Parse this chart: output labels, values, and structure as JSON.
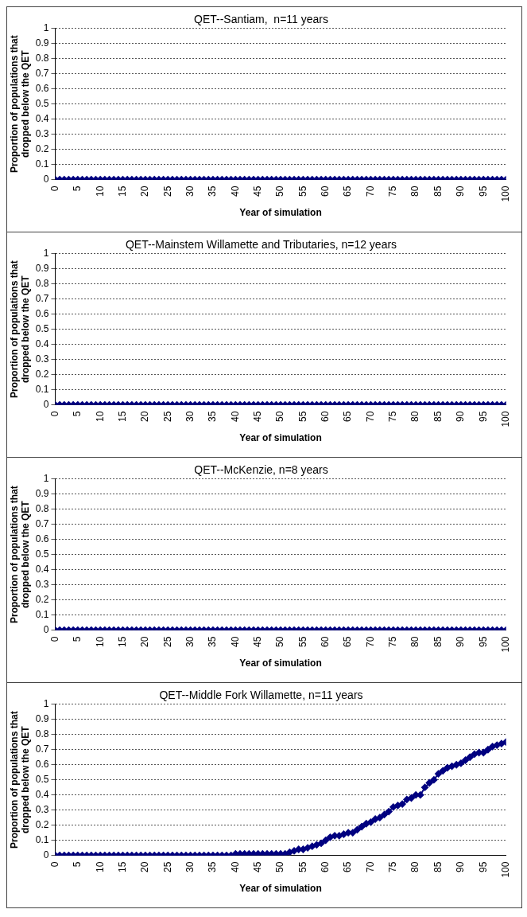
{
  "chart_data": [
    {
      "type": "line",
      "title": "QET--Santiam,  n=11 years",
      "xlabel": "Year of simulation",
      "ylabel": "Proportion of populations that dropped below the QET",
      "x": [
        0,
        1,
        2,
        3,
        4,
        5,
        6,
        7,
        8,
        9,
        10,
        11,
        12,
        13,
        14,
        15,
        16,
        17,
        18,
        19,
        20,
        21,
        22,
        23,
        24,
        25,
        26,
        27,
        28,
        29,
        30,
        31,
        32,
        33,
        34,
        35,
        36,
        37,
        38,
        39,
        40,
        41,
        42,
        43,
        44,
        45,
        46,
        47,
        48,
        49,
        50,
        51,
        52,
        53,
        54,
        55,
        56,
        57,
        58,
        59,
        60,
        61,
        62,
        63,
        64,
        65,
        66,
        67,
        68,
        69,
        70,
        71,
        72,
        73,
        74,
        75,
        76,
        77,
        78,
        79,
        80,
        81,
        82,
        83,
        84,
        85,
        86,
        87,
        88,
        89,
        90,
        91,
        92,
        93,
        94,
        95,
        96,
        97,
        98,
        99,
        100
      ],
      "series": [
        {
          "color": "#000080",
          "values": [
            0,
            0,
            0,
            0,
            0,
            0,
            0,
            0,
            0,
            0,
            0,
            0,
            0,
            0,
            0,
            0,
            0,
            0,
            0,
            0,
            0,
            0,
            0,
            0,
            0,
            0,
            0,
            0,
            0,
            0,
            0,
            0,
            0,
            0,
            0,
            0,
            0,
            0,
            0,
            0,
            0,
            0,
            0,
            0,
            0,
            0,
            0,
            0,
            0,
            0,
            0,
            0,
            0,
            0,
            0,
            0,
            0,
            0,
            0,
            0,
            0,
            0,
            0,
            0,
            0,
            0,
            0,
            0,
            0,
            0,
            0,
            0,
            0,
            0,
            0,
            0,
            0,
            0,
            0,
            0,
            0,
            0,
            0,
            0,
            0,
            0,
            0,
            0,
            0,
            0,
            0,
            0,
            0,
            0,
            0,
            0,
            0,
            0,
            0,
            0,
            0
          ]
        }
      ],
      "xlim": [
        0,
        100
      ],
      "xticks": [
        0,
        5,
        10,
        15,
        20,
        25,
        30,
        35,
        40,
        45,
        50,
        55,
        60,
        65,
        70,
        75,
        80,
        85,
        90,
        95,
        100
      ],
      "ylim": [
        0,
        1
      ],
      "yticks": [
        0,
        0.1,
        0.2,
        0.3,
        0.4,
        0.5,
        0.6,
        0.7,
        0.8,
        0.9,
        1
      ],
      "grid": "y",
      "marker": "diamond",
      "line_style": "solid",
      "legend": false
    },
    {
      "type": "line",
      "title": "QET--Mainstem Willamette and Tributaries, n=12 years",
      "xlabel": "Year of simulation",
      "ylabel": "Proportion of populations that dropped below the QET",
      "x": [
        0,
        1,
        2,
        3,
        4,
        5,
        6,
        7,
        8,
        9,
        10,
        11,
        12,
        13,
        14,
        15,
        16,
        17,
        18,
        19,
        20,
        21,
        22,
        23,
        24,
        25,
        26,
        27,
        28,
        29,
        30,
        31,
        32,
        33,
        34,
        35,
        36,
        37,
        38,
        39,
        40,
        41,
        42,
        43,
        44,
        45,
        46,
        47,
        48,
        49,
        50,
        51,
        52,
        53,
        54,
        55,
        56,
        57,
        58,
        59,
        60,
        61,
        62,
        63,
        64,
        65,
        66,
        67,
        68,
        69,
        70,
        71,
        72,
        73,
        74,
        75,
        76,
        77,
        78,
        79,
        80,
        81,
        82,
        83,
        84,
        85,
        86,
        87,
        88,
        89,
        90,
        91,
        92,
        93,
        94,
        95,
        96,
        97,
        98,
        99,
        100
      ],
      "series": [
        {
          "color": "#000080",
          "values": [
            0,
            0,
            0,
            0,
            0,
            0,
            0,
            0,
            0,
            0,
            0,
            0,
            0,
            0,
            0,
            0,
            0,
            0,
            0,
            0,
            0,
            0,
            0,
            0,
            0,
            0,
            0,
            0,
            0,
            0,
            0,
            0,
            0,
            0,
            0,
            0,
            0,
            0,
            0,
            0,
            0,
            0,
            0,
            0,
            0,
            0,
            0,
            0,
            0,
            0,
            0,
            0,
            0,
            0,
            0,
            0,
            0,
            0,
            0,
            0,
            0,
            0,
            0,
            0,
            0,
            0,
            0,
            0,
            0,
            0,
            0,
            0,
            0,
            0,
            0,
            0,
            0,
            0,
            0,
            0,
            0,
            0,
            0,
            0,
            0,
            0,
            0,
            0,
            0,
            0,
            0,
            0,
            0,
            0,
            0,
            0,
            0,
            0,
            0,
            0,
            0
          ]
        }
      ],
      "xlim": [
        0,
        100
      ],
      "xticks": [
        0,
        5,
        10,
        15,
        20,
        25,
        30,
        35,
        40,
        45,
        50,
        55,
        60,
        65,
        70,
        75,
        80,
        85,
        90,
        95,
        100
      ],
      "ylim": [
        0,
        1
      ],
      "yticks": [
        0,
        0.1,
        0.2,
        0.3,
        0.4,
        0.5,
        0.6,
        0.7,
        0.8,
        0.9,
        1
      ],
      "grid": "y",
      "marker": "diamond",
      "line_style": "solid",
      "legend": false
    },
    {
      "type": "line",
      "title": "QET--McKenzie, n=8 years",
      "xlabel": "Year of simulation",
      "ylabel": "Proportion of populations that dropped below the QET",
      "x": [
        0,
        1,
        2,
        3,
        4,
        5,
        6,
        7,
        8,
        9,
        10,
        11,
        12,
        13,
        14,
        15,
        16,
        17,
        18,
        19,
        20,
        21,
        22,
        23,
        24,
        25,
        26,
        27,
        28,
        29,
        30,
        31,
        32,
        33,
        34,
        35,
        36,
        37,
        38,
        39,
        40,
        41,
        42,
        43,
        44,
        45,
        46,
        47,
        48,
        49,
        50,
        51,
        52,
        53,
        54,
        55,
        56,
        57,
        58,
        59,
        60,
        61,
        62,
        63,
        64,
        65,
        66,
        67,
        68,
        69,
        70,
        71,
        72,
        73,
        74,
        75,
        76,
        77,
        78,
        79,
        80,
        81,
        82,
        83,
        84,
        85,
        86,
        87,
        88,
        89,
        90,
        91,
        92,
        93,
        94,
        95,
        96,
        97,
        98,
        99,
        100
      ],
      "series": [
        {
          "color": "#000080",
          "values": [
            0,
            0,
            0,
            0,
            0,
            0,
            0,
            0,
            0,
            0,
            0,
            0,
            0,
            0,
            0,
            0,
            0,
            0,
            0,
            0,
            0,
            0,
            0,
            0,
            0,
            0,
            0,
            0,
            0,
            0,
            0,
            0,
            0,
            0,
            0,
            0,
            0,
            0,
            0,
            0,
            0,
            0,
            0,
            0,
            0,
            0,
            0,
            0,
            0,
            0,
            0,
            0,
            0,
            0,
            0,
            0,
            0,
            0,
            0,
            0,
            0,
            0,
            0,
            0,
            0,
            0,
            0,
            0,
            0,
            0,
            0,
            0,
            0,
            0,
            0,
            0,
            0,
            0,
            0,
            0,
            0,
            0,
            0,
            0,
            0,
            0,
            0,
            0,
            0,
            0,
            0,
            0,
            0,
            0,
            0,
            0,
            0,
            0,
            0,
            0,
            0
          ]
        }
      ],
      "xlim": [
        0,
        100
      ],
      "xticks": [
        0,
        5,
        10,
        15,
        20,
        25,
        30,
        35,
        40,
        45,
        50,
        55,
        60,
        65,
        70,
        75,
        80,
        85,
        90,
        95,
        100
      ],
      "ylim": [
        0,
        1
      ],
      "yticks": [
        0,
        0.1,
        0.2,
        0.3,
        0.4,
        0.5,
        0.6,
        0.7,
        0.8,
        0.9,
        1
      ],
      "grid": "y",
      "marker": "diamond",
      "line_style": "solid",
      "legend": false
    },
    {
      "type": "line",
      "title": "QET--Middle Fork Willamette, n=11 years",
      "xlabel": "Year of simulation",
      "ylabel": "Proportion of populations that dropped below the QET",
      "x": [
        0,
        1,
        2,
        3,
        4,
        5,
        6,
        7,
        8,
        9,
        10,
        11,
        12,
        13,
        14,
        15,
        16,
        17,
        18,
        19,
        20,
        21,
        22,
        23,
        24,
        25,
        26,
        27,
        28,
        29,
        30,
        31,
        32,
        33,
        34,
        35,
        36,
        37,
        38,
        39,
        40,
        41,
        42,
        43,
        44,
        45,
        46,
        47,
        48,
        49,
        50,
        51,
        52,
        53,
        54,
        55,
        56,
        57,
        58,
        59,
        60,
        61,
        62,
        63,
        64,
        65,
        66,
        67,
        68,
        69,
        70,
        71,
        72,
        73,
        74,
        75,
        76,
        77,
        78,
        79,
        80,
        81,
        82,
        83,
        84,
        85,
        86,
        87,
        88,
        89,
        90,
        91,
        92,
        93,
        94,
        95,
        96,
        97,
        98,
        99,
        100
      ],
      "series": [
        {
          "color": "#000080",
          "values": [
            0,
            0,
            0,
            0,
            0,
            0,
            0,
            0,
            0,
            0,
            0,
            0,
            0,
            0,
            0,
            0,
            0,
            0,
            0,
            0,
            0,
            0,
            0,
            0,
            0,
            0,
            0,
            0,
            0,
            0,
            0,
            0,
            0,
            0,
            0,
            0,
            0,
            0,
            0,
            0,
            0.01,
            0.01,
            0.01,
            0.01,
            0.01,
            0.01,
            0.01,
            0.01,
            0.01,
            0.01,
            0.01,
            0.01,
            0.02,
            0.03,
            0.04,
            0.04,
            0.05,
            0.06,
            0.07,
            0.08,
            0.1,
            0.12,
            0.13,
            0.13,
            0.14,
            0.15,
            0.15,
            0.17,
            0.19,
            0.21,
            0.22,
            0.24,
            0.25,
            0.27,
            0.29,
            0.32,
            0.33,
            0.34,
            0.37,
            0.38,
            0.4,
            0.4,
            0.45,
            0.48,
            0.5,
            0.54,
            0.56,
            0.58,
            0.59,
            0.6,
            0.61,
            0.63,
            0.65,
            0.67,
            0.68,
            0.68,
            0.7,
            0.72,
            0.73,
            0.74,
            0.75
          ]
        }
      ],
      "xlim": [
        0,
        100
      ],
      "xticks": [
        0,
        5,
        10,
        15,
        20,
        25,
        30,
        35,
        40,
        45,
        50,
        55,
        60,
        65,
        70,
        75,
        80,
        85,
        90,
        95,
        100
      ],
      "ylim": [
        0,
        1
      ],
      "yticks": [
        0,
        0.1,
        0.2,
        0.3,
        0.4,
        0.5,
        0.6,
        0.7,
        0.8,
        0.9,
        1
      ],
      "grid": "y",
      "marker": "diamond",
      "line_style": "solid",
      "legend": false
    }
  ]
}
